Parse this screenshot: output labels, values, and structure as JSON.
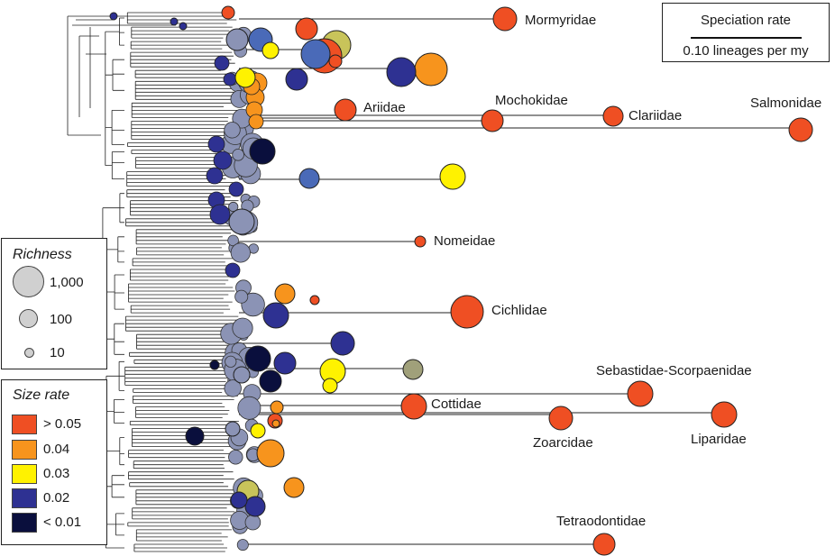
{
  "colors": {
    "gt_005": "#ef4f23",
    "c_004": "#f7941d",
    "c_003": "#fff200",
    "c_002": "#2e3192",
    "lt_001": "#0a0f3d",
    "background_tips": "#8b93b5",
    "blue_mid": "#4a6ab8",
    "olive": "#a0a07a",
    "olive_yellow": "#c8c45a",
    "branch": "#222222"
  },
  "family_labels": [
    {
      "name": "Mormyridae",
      "rate_class": "> 0.05",
      "tip_size": "large"
    },
    {
      "name": "Ariidae",
      "rate_class": "> 0.05",
      "tip_size": "medium"
    },
    {
      "name": "Mochokidae",
      "rate_class": "> 0.05",
      "tip_size": "medium"
    },
    {
      "name": "Clariidae",
      "rate_class": "> 0.05",
      "tip_size": "medium"
    },
    {
      "name": "Salmonidae",
      "rate_class": "> 0.05",
      "tip_size": "medium"
    },
    {
      "name": "Nomeidae",
      "rate_class": "> 0.05",
      "tip_size": "small"
    },
    {
      "name": "Cichlidae",
      "rate_class": "> 0.05",
      "tip_size": "large"
    },
    {
      "name": "Sebastidae-Scorpaenidae",
      "rate_class": "> 0.05",
      "tip_size": "medium"
    },
    {
      "name": "Cottidae",
      "rate_class": "> 0.05",
      "tip_size": "medium"
    },
    {
      "name": "Zoarcidae",
      "rate_class": "> 0.05",
      "tip_size": "medium"
    },
    {
      "name": "Liparidae",
      "rate_class": "> 0.05",
      "tip_size": "medium"
    },
    {
      "name": "Tetraodontidae",
      "rate_class": "> 0.05",
      "tip_size": "medium"
    }
  ],
  "speciation_legend": {
    "title": "Speciation rate",
    "scale_label": "0.10 lineages per my"
  },
  "richness_legend": {
    "title": "Richness",
    "items": [
      {
        "label": "1,000"
      },
      {
        "label": "100"
      },
      {
        "label": "10"
      }
    ]
  },
  "size_rate_legend": {
    "title": "Size rate",
    "items": [
      {
        "label": "> 0.05",
        "color": "#ef4f23"
      },
      {
        "label": "0.04",
        "color": "#f7941d"
      },
      {
        "label": "0.03",
        "color": "#fff200"
      },
      {
        "label": "0.02",
        "color": "#2e3192"
      },
      {
        "label": "< 0.01",
        "color": "#0a0f3d"
      }
    ]
  }
}
